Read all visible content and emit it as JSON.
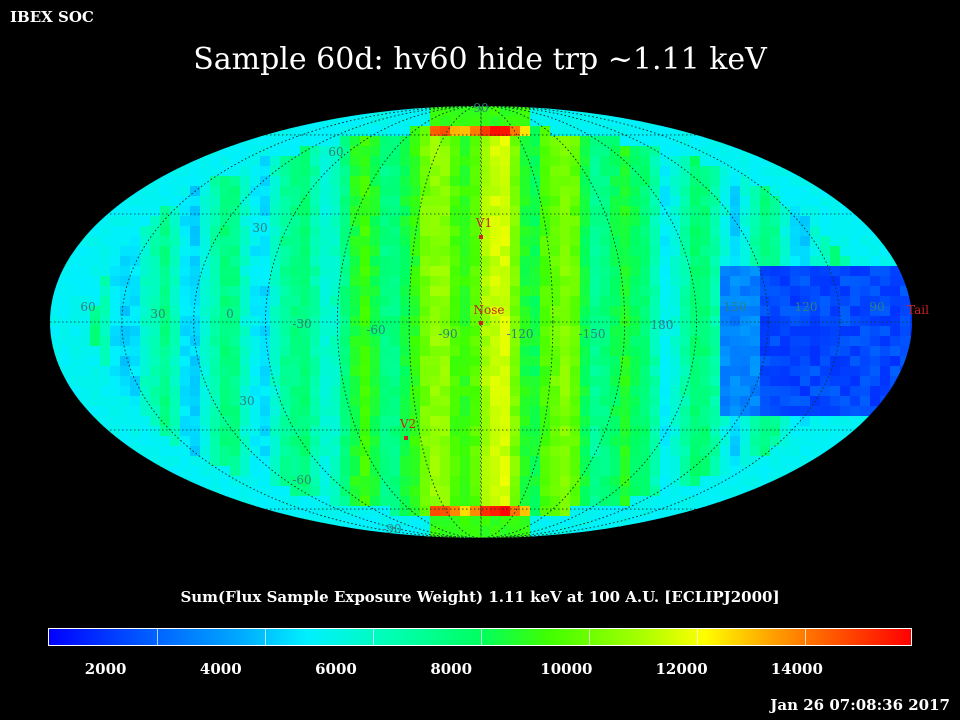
{
  "header": {
    "org": "IBEX SOC",
    "title": "Sample 60d: hv60 hide trp ~1.11 keV"
  },
  "colorbar": {
    "title": "Sum(Flux Sample Exposure Weight)  1.11 keV at 100 A.U. [ECLIPJ2000]",
    "ticks": [
      "2000",
      "4000",
      "6000",
      "8000",
      "10000",
      "12000",
      "14000"
    ],
    "tick_values": [
      2000,
      4000,
      6000,
      8000,
      10000,
      12000,
      14000
    ],
    "min": 1000,
    "max": 16000
  },
  "footer": {
    "timestamp": "Jan 26 07:08:36 2017"
  },
  "chart_data": {
    "type": "heatmap",
    "projection": "mollweide",
    "title": "Sample 60d: hv60 hide trp ~1.11 keV",
    "colorbar_label": "Sum(Flux Sample Exposure Weight)  1.11 keV at 100 A.U. [ECLIPJ2000]",
    "range": [
      1000,
      16000
    ],
    "longitude_labels": [
      "60",
      "30",
      "0",
      "-30",
      "-60",
      "-90",
      "-120",
      "-150",
      "180",
      "150",
      "120",
      "90"
    ],
    "latitude_labels": [
      "90",
      "60",
      "30",
      "30",
      "-60",
      "-90"
    ],
    "markers": [
      {
        "name": "V1",
        "lon": -95,
        "lat": 35
      },
      {
        "name": "Nose",
        "lon": -105,
        "lat": 5
      },
      {
        "name": "V2",
        "lon": -70,
        "lat": -34
      },
      {
        "name": "Tail",
        "lon": 75,
        "lat": -5
      }
    ]
  },
  "colors": {
    "background": "#000000",
    "marker": "#cc2222",
    "grid_label": "#2f7f7f"
  }
}
